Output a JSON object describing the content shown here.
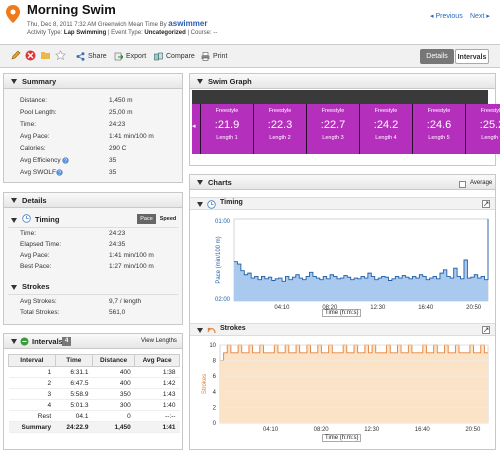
{
  "header": {
    "title": "Morning Swim",
    "date_line": "Thu, Dec 8, 2011 7:32 AM Greenwich Mean Time By",
    "user": "aswimmer",
    "activity_type_label": "Activity Type:",
    "activity_type": "Lap Swimming",
    "event_type_label": "| Event Type:",
    "event_type": "Uncategorized",
    "course_label": "| Course: --",
    "prev": "Previous",
    "next": "Next"
  },
  "toolbar": {
    "share": "Share",
    "export": "Export",
    "compare": "Compare",
    "print": "Print",
    "details": "Details",
    "intervals": "Intervals"
  },
  "summary": {
    "title": "Summary",
    "rows": [
      {
        "label": "Distance:",
        "value": "1,450 m"
      },
      {
        "label": "Pool Length:",
        "value": "25,00 m"
      },
      {
        "label": "Time:",
        "value": "24:23"
      },
      {
        "label": "Avg Pace:",
        "value": "1:41 min/100 m"
      },
      {
        "label": "Calories:",
        "value": "290 C"
      },
      {
        "label": "Avg Efficiency",
        "value": "35"
      },
      {
        "label": "Avg SWOLF",
        "value": "35"
      }
    ]
  },
  "details": {
    "title": "Details",
    "timing_title": "Timing",
    "pace_btn": "Pace",
    "speed_btn": "Speed",
    "timing_rows": [
      {
        "label": "Time:",
        "value": "24:23"
      },
      {
        "label": "Elapsed Time:",
        "value": "24:35"
      },
      {
        "label": "Avg Pace:",
        "value": "1:41 min/100 m"
      },
      {
        "label": "Best Pace:",
        "value": "1:27 min/100 m"
      }
    ],
    "strokes_title": "Strokes",
    "strokes_rows": [
      {
        "label": "Avg Strokes:",
        "value": "9,7 / length"
      },
      {
        "label": "Total Strokes:",
        "value": "561,0"
      }
    ]
  },
  "intervals": {
    "title": "Intervals",
    "count": "4",
    "view_lengths": "View Lengths",
    "columns": [
      "Interval",
      "Time",
      "Distance",
      "Avg Pace"
    ],
    "rows": [
      [
        "1",
        "6:31.1",
        "400",
        "1:38"
      ],
      [
        "2",
        "6:47.5",
        "400",
        "1:42"
      ],
      [
        "3",
        "5:58.9",
        "350",
        "1:43"
      ],
      [
        "4",
        "5:01.3",
        "300",
        "1:40"
      ],
      [
        "Rest",
        "04.1",
        "0",
        "--:--"
      ]
    ],
    "summary_row": [
      "Summary",
      "24:22.9",
      "1,450",
      "1:41"
    ]
  },
  "swim_graph": {
    "title": "Swim Graph",
    "laps": [
      {
        "stroke": "Freestyle",
        "time": ":21.9",
        "length": "Length 1"
      },
      {
        "stroke": "Freestyle",
        "time": ":22.3",
        "length": "Length 2"
      },
      {
        "stroke": "Freestyle",
        "time": ":22.7",
        "length": "Length 3"
      },
      {
        "stroke": "Freestyle",
        "time": ":24.2",
        "length": "Length 4"
      },
      {
        "stroke": "Freestyle",
        "time": ":24.6",
        "length": "Length 5"
      },
      {
        "stroke": "Freestyle",
        "time": ":25.2",
        "length": "Length 6"
      }
    ]
  },
  "charts": {
    "title": "Charts",
    "average_label": "Average"
  },
  "chart_data": [
    {
      "type": "area",
      "title": "Timing",
      "ylabel": "Pace (min/100 m)",
      "xlabel": "Time (h:m:s)",
      "y_ticks": [
        "01:00",
        "02:00"
      ],
      "x_ticks": [
        "04:10",
        "08:20",
        "12:30",
        "16:40",
        "20:50"
      ],
      "color": "#aac9ef",
      "stroke": "#1f5fa6",
      "values": [
        1.52,
        1.55,
        1.63,
        1.68,
        1.66,
        1.72,
        1.7,
        1.74,
        1.7,
        1.73,
        1.71,
        1.75,
        1.73,
        1.72,
        1.76,
        1.7,
        1.74,
        1.71,
        1.68,
        1.72,
        1.74,
        1.7,
        1.65,
        1.7,
        1.72,
        1.74,
        1.7,
        1.73,
        1.68,
        1.7,
        1.73,
        1.72,
        1.69,
        1.71,
        1.74,
        1.72,
        1.73,
        1.7,
        1.72,
        1.66,
        1.7,
        1.74,
        1.72,
        1.7,
        1.71,
        1.75,
        1.73,
        1.7,
        1.72,
        1.69,
        1.71,
        1.73,
        1.7,
        1.72,
        1.68,
        1.7,
        1.74,
        1.72,
        1.7,
        1.73,
        1.66,
        1.62,
        1.7,
        1.72,
        1.6,
        1.7,
        1.73,
        1.5,
        1.72,
        1.71,
        1.68,
        1.72,
        1.7,
        1.74,
        1.0
      ]
    },
    {
      "type": "area",
      "title": "Strokes",
      "ylabel": "Strokes",
      "xlabel": "Time (h:m:s)",
      "ylim": [
        0,
        10
      ],
      "y_ticks": [
        "0",
        "2",
        "4",
        "6",
        "8",
        "10"
      ],
      "x_ticks": [
        "04:10",
        "08:20",
        "12:30",
        "16:40",
        "20:50"
      ],
      "color": "#fbe3c8",
      "stroke": "#e0823a",
      "values": [
        8,
        9,
        10,
        9,
        9,
        10,
        9,
        9,
        10,
        9,
        9,
        10,
        9,
        9,
        9,
        10,
        9,
        9,
        10,
        9,
        9,
        10,
        9,
        9,
        10,
        9,
        9,
        10,
        9,
        9,
        10,
        9,
        9,
        9,
        10,
        9,
        9,
        10,
        9,
        9,
        10,
        9,
        10,
        9,
        9,
        9,
        10,
        9,
        9,
        10,
        9,
        9,
        10,
        9,
        9,
        9,
        10,
        9,
        9,
        10,
        9,
        9,
        10,
        9,
        9,
        10,
        9,
        9,
        9,
        10,
        9,
        9,
        10,
        9,
        9
      ]
    }
  ]
}
